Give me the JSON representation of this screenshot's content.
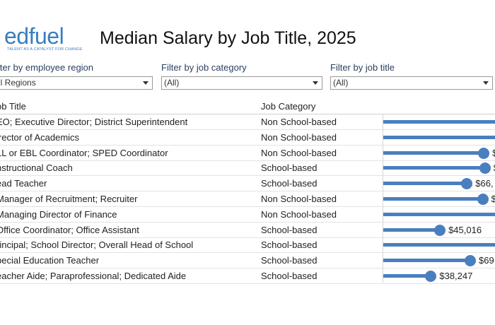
{
  "logo": {
    "word": "edfuel",
    "tagline": "TALENT AS A CATALYST FOR CHANGE"
  },
  "title": "Median Salary by Job Title, 2025",
  "filters": [
    {
      "label": "ilter by employee region",
      "value": "ll Regions"
    },
    {
      "label": "Filter by job category",
      "value": "(All)"
    },
    {
      "label": "Filter by job title",
      "value": "(All)"
    }
  ],
  "table": {
    "columns": {
      "title": "ob Title",
      "category": "Job Category"
    },
    "rows": [
      {
        "title": "EO; Executive Director; District Superintendent",
        "category": "Non School-based",
        "fraction": 1.0,
        "label": ""
      },
      {
        "title": "irector of Academics",
        "category": "Non School-based",
        "fraction": 1.0,
        "label": ""
      },
      {
        "title": "LL or EBL Coordinator; SPED Coordinator",
        "category": "Non School-based",
        "fraction": 0.9,
        "label": "$"
      },
      {
        "title": "nstructional Coach",
        "category": "School-based",
        "fraction": 0.91,
        "label": "$"
      },
      {
        "title": "ead Teacher",
        "category": "School-based",
        "fraction": 0.75,
        "label": "$66,"
      },
      {
        "title": "Manager of Recruitment; Recruiter",
        "category": "Non School-based",
        "fraction": 0.89,
        "label": "$"
      },
      {
        "title": "Managing Director of Finance",
        "category": "Non School-based",
        "fraction": 1.0,
        "label": ""
      },
      {
        "title": "Office Coordinator; Office Assistant",
        "category": "School-based",
        "fraction": 0.51,
        "label": "$45,016"
      },
      {
        "title": "rincipal; School Director; Overall Head of School",
        "category": "School-based",
        "fraction": 1.0,
        "label": ""
      },
      {
        "title": "pecial Education Teacher",
        "category": "School-based",
        "fraction": 0.78,
        "label": "$69"
      },
      {
        "title": "eacher Aide; Paraprofessional; Dedicated Aide",
        "category": "School-based",
        "fraction": 0.43,
        "label": "$38,247"
      }
    ]
  },
  "colors": {
    "accent": "#4a7fbf",
    "logo": "#3a7ec0"
  }
}
